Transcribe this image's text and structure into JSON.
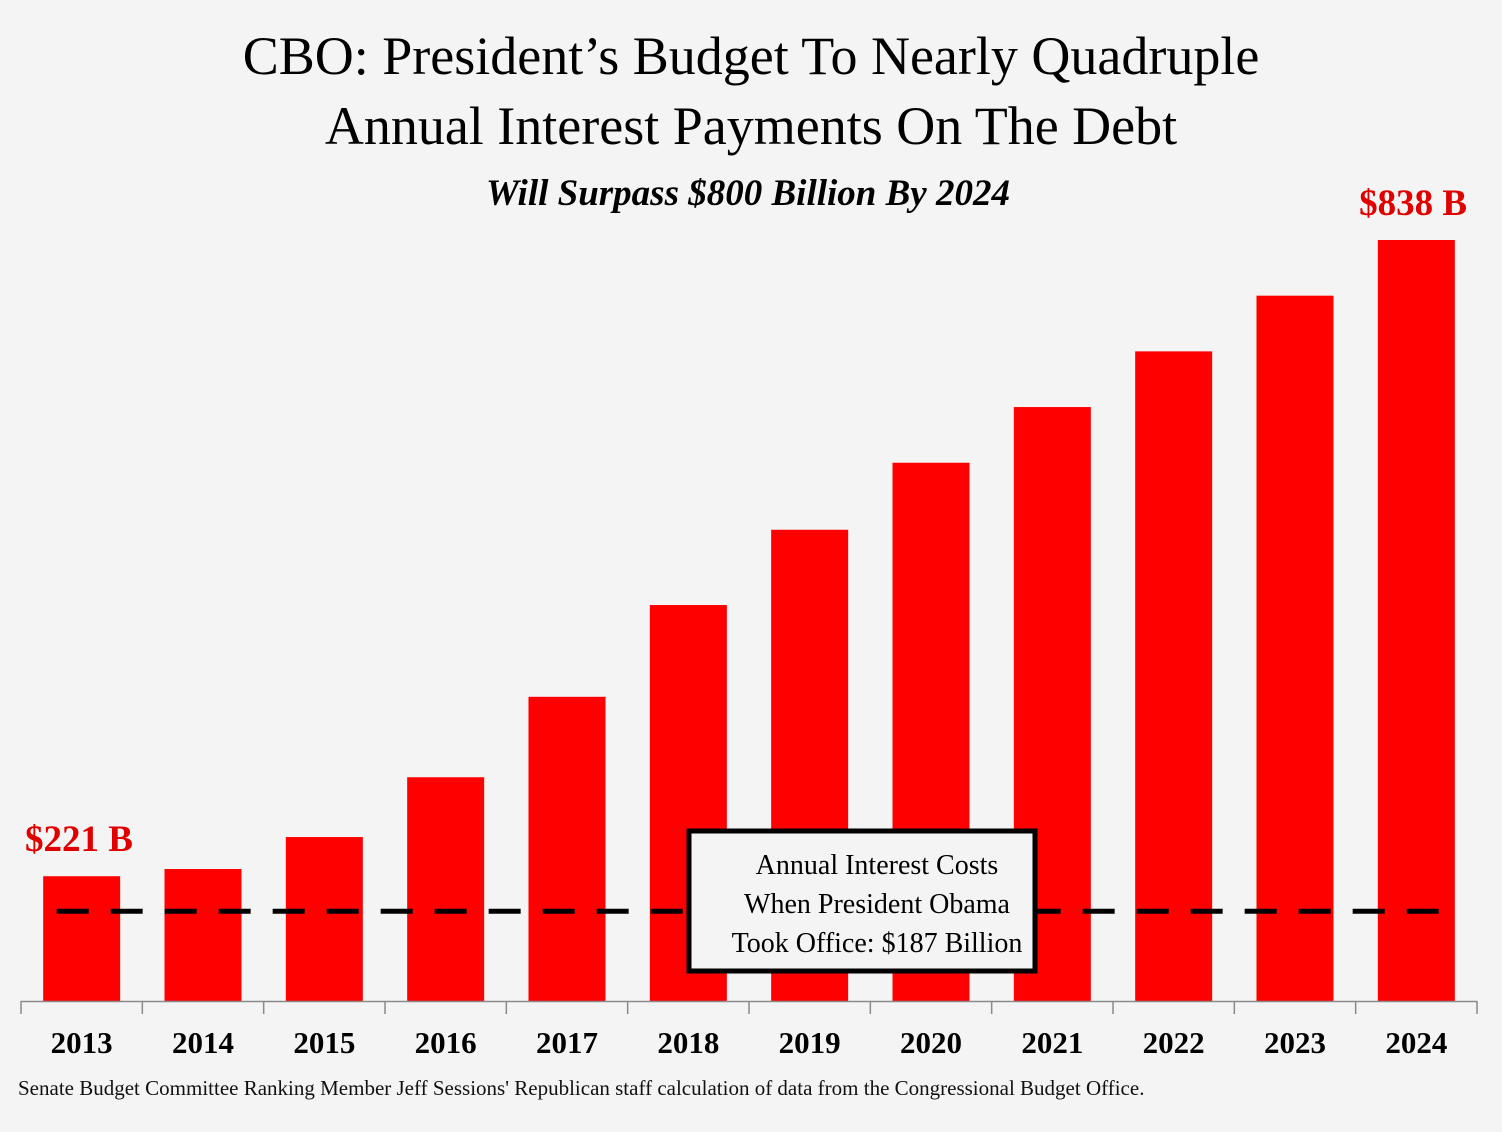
{
  "chart_data": {
    "type": "bar",
    "title": "CBO: President’s Budget To Nearly Quadruple Annual Interest Payments On The Debt",
    "title_lines": [
      "CBO: President’s Budget To Nearly Quadruple",
      "Annual Interest Payments On The Debt"
    ],
    "subtitle": "Will Surpass $800 Billion By 2024",
    "xlabel": "",
    "ylabel": "",
    "categories": [
      "2013",
      "2014",
      "2015",
      "2016",
      "2017",
      "2018",
      "2019",
      "2020",
      "2021",
      "2022",
      "2023",
      "2024"
    ],
    "series": [
      {
        "name": "Annual Interest Payments ($ Billions)",
        "color": "#ff0000",
        "values": [
          221,
          228,
          259,
          317,
          395,
          484,
          557,
          622,
          676,
          730,
          784,
          838
        ]
      }
    ],
    "ylim": [
      100,
      860
    ],
    "grid": false,
    "data_labels": [
      {
        "category": "2013",
        "text": "$221 B",
        "color": "#e00000"
      },
      {
        "category": "2024",
        "text": "$838 B",
        "color": "#e00000"
      }
    ],
    "reference_line": {
      "value": 187,
      "style": "dashed",
      "color": "#000000",
      "annotation_lines": [
        "Annual Interest Costs",
        "When President Obama",
        "Took Office: $187 Billion"
      ]
    },
    "source": "Senate Budget Committee Ranking Member Jeff Sessions' Republican staff calculation of data from the Congressional Budget Office."
  }
}
